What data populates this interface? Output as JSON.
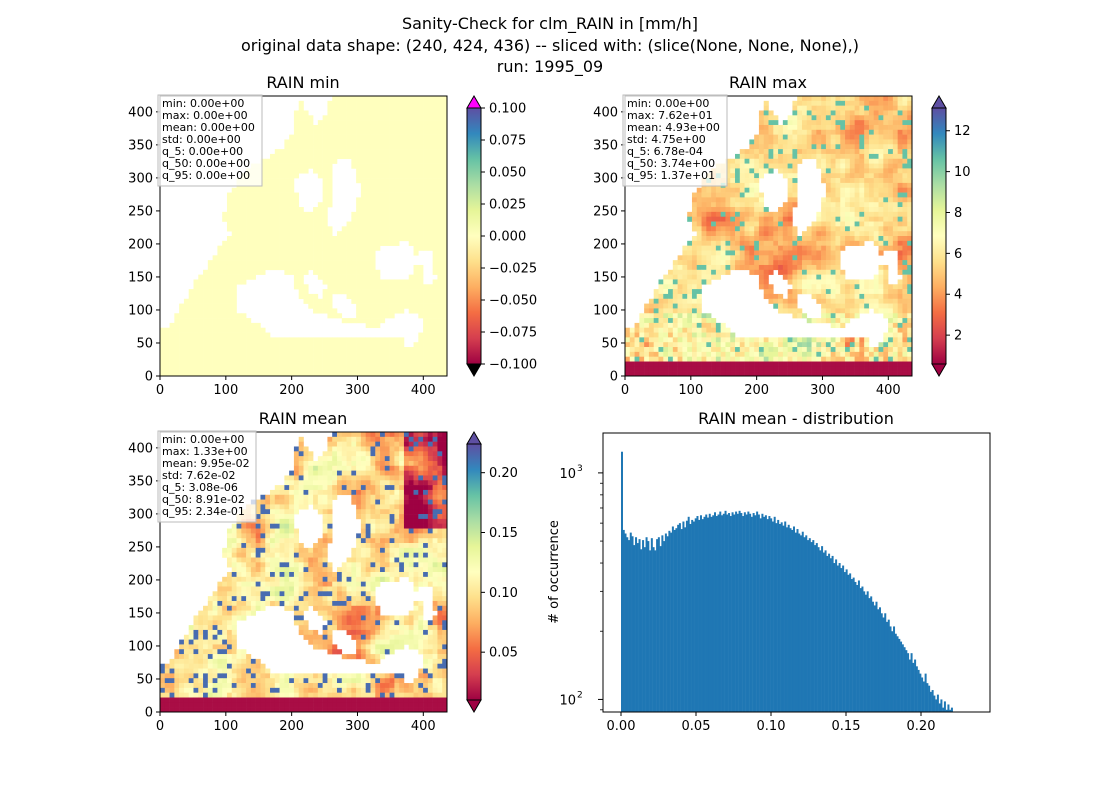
{
  "figure": {
    "title_lines": [
      "Sanity-Check for clm_RAIN in [mm/h]",
      "original data shape: (240, 424, 436) -- sliced with: (slice(None, None, None),)",
      "run: 1995_09"
    ]
  },
  "maps": [
    {
      "id": "min",
      "title": "RAIN min",
      "stats": [
        "min: 0.00e+00",
        "max: 0.00e+00",
        "mean: 0.00e+00",
        "std: 0.00e+00",
        "q_5: 0.00e+00",
        "q_50: 0.00e+00",
        "q_95: 0.00e+00"
      ],
      "x_ticks": [
        "0",
        "100",
        "200",
        "300",
        "400"
      ],
      "y_ticks": [
        "0",
        "50",
        "100",
        "150",
        "200",
        "250",
        "300",
        "350",
        "400"
      ],
      "colorbar": {
        "ticks": [
          "-0.100",
          "-0.075",
          "-0.050",
          "-0.025",
          "0.000",
          "0.025",
          "0.050",
          "0.075",
          "0.100"
        ],
        "range": [
          -0.1,
          0.1
        ],
        "extend_top_color": "#ff00ff",
        "extend_bottom_color": "#000000"
      }
    },
    {
      "id": "max",
      "title": "RAIN max",
      "stats": [
        "min: 0.00e+00",
        "max: 7.62e+01",
        "mean: 4.93e+00",
        "std: 4.75e+00",
        "q_5: 6.78e-04",
        "q_50: 3.74e+00",
        "q_95: 1.37e+01"
      ],
      "x_ticks": [
        "0",
        "100",
        "200",
        "300",
        "400"
      ],
      "y_ticks": [
        "0",
        "50",
        "100",
        "150",
        "200",
        "250",
        "300",
        "350",
        "400"
      ],
      "colorbar": {
        "ticks": [
          "2",
          "4",
          "6",
          "8",
          "10",
          "12"
        ],
        "range": [
          0,
          13.7
        ]
      }
    },
    {
      "id": "mean",
      "title": "RAIN mean",
      "stats": [
        "min: 0.00e+00",
        "max: 1.33e+00",
        "mean: 9.95e-02",
        "std: 7.62e-02",
        "q_5: 3.08e-06",
        "q_50: 8.91e-02",
        "q_95: 2.34e-01"
      ],
      "x_ticks": [
        "0",
        "100",
        "200",
        "300",
        "400"
      ],
      "y_ticks": [
        "0",
        "50",
        "100",
        "150",
        "200",
        "250",
        "300",
        "350",
        "400"
      ],
      "colorbar": {
        "ticks": [
          "0.05",
          "0.10",
          "0.15",
          "0.20"
        ],
        "range": [
          0,
          0.234
        ]
      }
    }
  ],
  "colors": {
    "min_fill": "#ffffbe",
    "spectral": [
      "#9e0142",
      "#d53e4f",
      "#f46d43",
      "#fdae61",
      "#fee08b",
      "#ffffbf",
      "#e6f598",
      "#abdda4",
      "#66c2a5",
      "#3288bd",
      "#5e4fa2"
    ],
    "hist_bar": "#1f77b4"
  },
  "chart_data": {
    "type": "bar",
    "title": "RAIN mean - distribution",
    "xlabel": "",
    "ylabel": "# of occurrence",
    "yscale": "log",
    "x_ticks": [
      "0.00",
      "0.05",
      "0.10",
      "0.15",
      "0.20"
    ],
    "y_ticks": [
      "10^2",
      "10^3"
    ],
    "xlim": [
      -0.012,
      0.246
    ],
    "ylim": [
      88,
      1500
    ],
    "bin_start": 0.0,
    "bin_width": 0.00117,
    "values": [
      1240,
      560,
      540,
      520,
      505,
      545,
      525,
      480,
      520,
      490,
      510,
      460,
      505,
      470,
      520,
      500,
      455,
      515,
      470,
      455,
      510,
      520,
      475,
      530,
      500,
      540,
      525,
      555,
      545,
      580,
      560,
      570,
      590,
      600,
      565,
      610,
      575,
      615,
      640,
      595,
      620,
      610,
      630,
      645,
      620,
      650,
      625,
      640,
      655,
      635,
      660,
      640,
      650,
      670,
      645,
      655,
      675,
      650,
      660,
      680,
      655,
      665,
      645,
      670,
      655,
      675,
      660,
      680,
      665,
      645,
      670,
      655,
      675,
      660,
      640,
      665,
      650,
      675,
      655,
      630,
      660,
      640,
      650,
      625,
      645,
      630,
      610,
      640,
      600,
      620,
      595,
      605,
      585,
      610,
      575,
      590,
      570,
      560,
      580,
      545,
      565,
      540,
      530,
      550,
      520,
      530,
      505,
      515,
      495,
      505,
      480,
      490,
      470,
      455,
      475,
      445,
      455,
      430,
      440,
      420,
      430,
      400,
      415,
      390,
      400,
      380,
      390,
      365,
      375,
      355,
      360,
      340,
      345,
      330,
      320,
      335,
      310,
      315,
      300,
      290,
      300,
      280,
      285,
      270,
      260,
      270,
      250,
      255,
      240,
      230,
      240,
      220,
      225,
      210,
      200,
      210,
      195,
      190,
      185,
      180,
      175,
      170,
      165,
      160,
      150,
      160,
      145,
      150,
      140,
      135,
      130,
      125,
      120,
      130,
      118,
      115,
      108,
      110,
      104,
      100,
      105,
      96,
      100,
      92,
      98,
      90,
      95,
      90,
      92
    ]
  }
}
